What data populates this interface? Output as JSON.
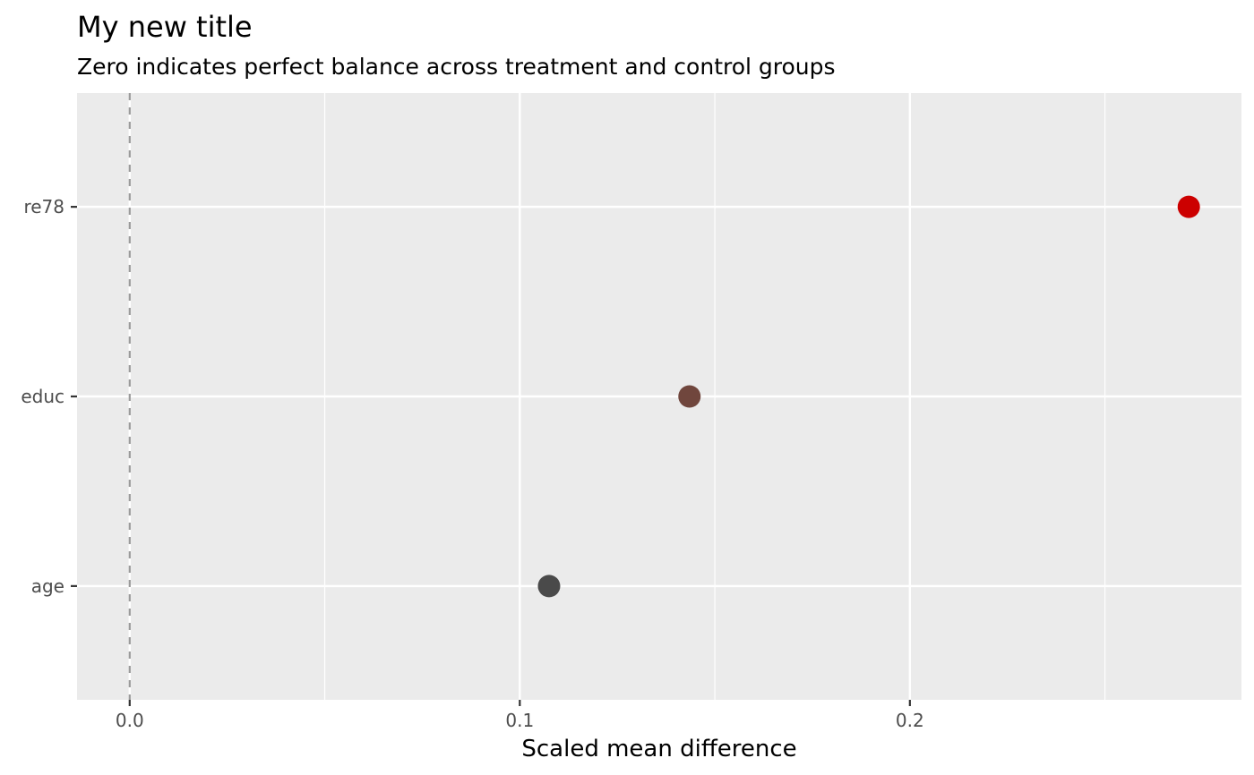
{
  "chart_data": {
    "type": "scatter",
    "title": "My new title",
    "subtitle": "Zero indicates perfect balance across treatment and control groups",
    "xlabel": "Scaled mean difference",
    "ylabel": "",
    "xlim": [
      -0.0135,
      0.285
    ],
    "x_ticks": [
      0.0,
      0.1,
      0.2
    ],
    "x_tick_labels": [
      "0.0",
      "0.1",
      "0.2"
    ],
    "categories": [
      "age",
      "educ",
      "re78"
    ],
    "points": [
      {
        "category": "age",
        "x": 0.1075,
        "color": "#4a4a4a"
      },
      {
        "category": "educ",
        "x": 0.1435,
        "color": "#70463d"
      },
      {
        "category": "re78",
        "x": 0.2715,
        "color": "#cc0000"
      }
    ],
    "reference_line": {
      "x": 0.0,
      "style": "dashed",
      "color": "#9a9a9a"
    },
    "grid": true,
    "legend": "none",
    "panel_background": "#ebebeb"
  }
}
